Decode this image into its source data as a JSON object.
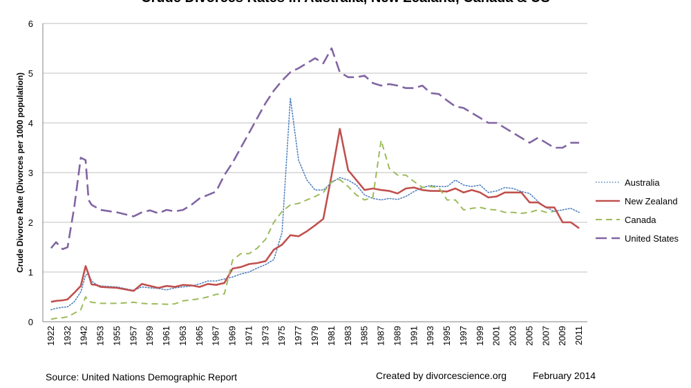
{
  "chart_data": {
    "type": "line",
    "title": "Crude Divorces Rates in Australia, New Zealand, Canada & US",
    "xlabel": "",
    "ylabel": "Crude Divorce Rate (Divorces per 1000 population)",
    "ylim": [
      0,
      6
    ],
    "yticks": [
      0,
      1,
      2,
      3,
      4,
      5,
      6
    ],
    "grid": "horizontal",
    "legend_position": "right",
    "xtick_labels": [
      "1922",
      "1932",
      "1942",
      "1953",
      "1955",
      "1957",
      "1959",
      "1961",
      "1963",
      "1965",
      "1967",
      "1969",
      "1971",
      "1973",
      "1975",
      "1977",
      "1979",
      "1981",
      "1983",
      "1985",
      "1987",
      "1989",
      "1991",
      "1993",
      "1995",
      "1997",
      "1999",
      "2001",
      "2003",
      "2005",
      "2007",
      "2009",
      "2011"
    ],
    "x": [
      1922,
      1932,
      1942,
      1953,
      1955,
      1957,
      1959,
      1961,
      1963,
      1965,
      1967,
      1969,
      1971,
      1973,
      1975,
      1977,
      1979,
      1981,
      1983,
      1985,
      1987,
      1989,
      1991,
      1993,
      1995,
      1997,
      1999,
      2001,
      2003,
      2005,
      2007,
      2009,
      2011
    ],
    "series": [
      {
        "name": "Australia",
        "color": "#4f81bd",
        "dash": "dotted",
        "points": [
          [
            1922,
            0.24
          ],
          [
            1925,
            0.27
          ],
          [
            1929,
            0.29
          ],
          [
            1932,
            0.3
          ],
          [
            1936,
            0.4
          ],
          [
            1940,
            0.6
          ],
          [
            1943,
            0.94
          ],
          [
            1945,
            0.96
          ],
          [
            1947,
            0.82
          ],
          [
            1950,
            0.75
          ],
          [
            1953,
            0.72
          ],
          [
            1955,
            0.7
          ],
          [
            1957,
            0.63
          ],
          [
            1958,
            0.7
          ],
          [
            1959,
            0.68
          ],
          [
            1960,
            0.67
          ],
          [
            1961,
            0.64
          ],
          [
            1962,
            0.68
          ],
          [
            1963,
            0.7
          ],
          [
            1964,
            0.72
          ],
          [
            1965,
            0.76
          ],
          [
            1966,
            0.82
          ],
          [
            1967,
            0.82
          ],
          [
            1968,
            0.86
          ],
          [
            1969,
            0.9
          ],
          [
            1970,
            0.96
          ],
          [
            1971,
            1.0
          ],
          [
            1972,
            1.08
          ],
          [
            1973,
            1.15
          ],
          [
            1974,
            1.25
          ],
          [
            1975,
            1.8
          ],
          [
            1976,
            4.5
          ],
          [
            1977,
            3.25
          ],
          [
            1978,
            2.85
          ],
          [
            1979,
            2.65
          ],
          [
            1980,
            2.65
          ],
          [
            1981,
            2.8
          ],
          [
            1982,
            2.9
          ],
          [
            1983,
            2.85
          ],
          [
            1984,
            2.75
          ],
          [
            1985,
            2.55
          ],
          [
            1986,
            2.48
          ],
          [
            1987,
            2.45
          ],
          [
            1988,
            2.48
          ],
          [
            1989,
            2.46
          ],
          [
            1990,
            2.52
          ],
          [
            1991,
            2.62
          ],
          [
            1992,
            2.7
          ],
          [
            1993,
            2.74
          ],
          [
            1994,
            2.72
          ],
          [
            1995,
            2.72
          ],
          [
            1996,
            2.85
          ],
          [
            1997,
            2.75
          ],
          [
            1998,
            2.72
          ],
          [
            1999,
            2.75
          ],
          [
            2000,
            2.6
          ],
          [
            2001,
            2.63
          ],
          [
            2002,
            2.7
          ],
          [
            2003,
            2.68
          ],
          [
            2004,
            2.62
          ],
          [
            2005,
            2.58
          ],
          [
            2006,
            2.42
          ],
          [
            2007,
            2.3
          ],
          [
            2008,
            2.22
          ],
          [
            2009,
            2.25
          ],
          [
            2010,
            2.28
          ],
          [
            2011,
            2.2
          ]
        ]
      },
      {
        "name": "New Zealand",
        "color": "#c0504d",
        "dash": "solid",
        "points": [
          [
            1922,
            0.4
          ],
          [
            1925,
            0.42
          ],
          [
            1929,
            0.43
          ],
          [
            1932,
            0.45
          ],
          [
            1936,
            0.58
          ],
          [
            1940,
            0.72
          ],
          [
            1943,
            1.12
          ],
          [
            1945,
            0.95
          ],
          [
            1947,
            0.75
          ],
          [
            1950,
            0.74
          ],
          [
            1953,
            0.7
          ],
          [
            1955,
            0.68
          ],
          [
            1957,
            0.62
          ],
          [
            1958,
            0.76
          ],
          [
            1959,
            0.72
          ],
          [
            1960,
            0.68
          ],
          [
            1961,
            0.72
          ],
          [
            1962,
            0.7
          ],
          [
            1963,
            0.74
          ],
          [
            1964,
            0.73
          ],
          [
            1965,
            0.7
          ],
          [
            1966,
            0.76
          ],
          [
            1967,
            0.74
          ],
          [
            1968,
            0.78
          ],
          [
            1969,
            1.07
          ],
          [
            1970,
            1.1
          ],
          [
            1971,
            1.16
          ],
          [
            1972,
            1.18
          ],
          [
            1973,
            1.22
          ],
          [
            1974,
            1.45
          ],
          [
            1975,
            1.55
          ],
          [
            1976,
            1.74
          ],
          [
            1977,
            1.72
          ],
          [
            1978,
            1.82
          ],
          [
            1979,
            1.94
          ],
          [
            1980,
            2.07
          ],
          [
            1981,
            2.95
          ],
          [
            1982,
            3.88
          ],
          [
            1983,
            3.05
          ],
          [
            1984,
            2.85
          ],
          [
            1985,
            2.65
          ],
          [
            1986,
            2.68
          ],
          [
            1987,
            2.65
          ],
          [
            1988,
            2.63
          ],
          [
            1989,
            2.58
          ],
          [
            1990,
            2.68
          ],
          [
            1991,
            2.7
          ],
          [
            1992,
            2.65
          ],
          [
            1993,
            2.63
          ],
          [
            1994,
            2.63
          ],
          [
            1995,
            2.62
          ],
          [
            1996,
            2.68
          ],
          [
            1997,
            2.6
          ],
          [
            1998,
            2.65
          ],
          [
            1999,
            2.6
          ],
          [
            2000,
            2.5
          ],
          [
            2001,
            2.52
          ],
          [
            2002,
            2.6
          ],
          [
            2003,
            2.6
          ],
          [
            2004,
            2.6
          ],
          [
            2005,
            2.4
          ],
          [
            2006,
            2.4
          ],
          [
            2007,
            2.3
          ],
          [
            2008,
            2.3
          ],
          [
            2009,
            2.0
          ],
          [
            2010,
            2.0
          ],
          [
            2011,
            1.88
          ]
        ]
      },
      {
        "name": "Canada",
        "color": "#9bbb59",
        "dash": "dashed",
        "points": [
          [
            1922,
            0.05
          ],
          [
            1925,
            0.07
          ],
          [
            1929,
            0.08
          ],
          [
            1932,
            0.1
          ],
          [
            1936,
            0.17
          ],
          [
            1940,
            0.24
          ],
          [
            1943,
            0.5
          ],
          [
            1945,
            0.42
          ],
          [
            1947,
            0.39
          ],
          [
            1950,
            0.38
          ],
          [
            1953,
            0.37
          ],
          [
            1955,
            0.37
          ],
          [
            1957,
            0.39
          ],
          [
            1958,
            0.37
          ],
          [
            1959,
            0.36
          ],
          [
            1960,
            0.36
          ],
          [
            1961,
            0.35
          ],
          [
            1962,
            0.36
          ],
          [
            1963,
            0.42
          ],
          [
            1964,
            0.44
          ],
          [
            1965,
            0.46
          ],
          [
            1966,
            0.5
          ],
          [
            1967,
            0.55
          ],
          [
            1968,
            0.56
          ],
          [
            1969,
            1.24
          ],
          [
            1970,
            1.37
          ],
          [
            1971,
            1.37
          ],
          [
            1972,
            1.48
          ],
          [
            1973,
            1.66
          ],
          [
            1974,
            2.0
          ],
          [
            1975,
            2.22
          ],
          [
            1976,
            2.35
          ],
          [
            1977,
            2.38
          ],
          [
            1978,
            2.45
          ],
          [
            1979,
            2.52
          ],
          [
            1980,
            2.6
          ],
          [
            1981,
            2.82
          ],
          [
            1982,
            2.86
          ],
          [
            1983,
            2.72
          ],
          [
            1984,
            2.55
          ],
          [
            1985,
            2.45
          ],
          [
            1986,
            2.5
          ],
          [
            1987,
            3.65
          ],
          [
            1988,
            3.08
          ],
          [
            1989,
            2.95
          ],
          [
            1990,
            2.95
          ],
          [
            1991,
            2.82
          ],
          [
            1992,
            2.7
          ],
          [
            1993,
            2.72
          ],
          [
            1994,
            2.7
          ],
          [
            1995,
            2.45
          ],
          [
            1996,
            2.45
          ],
          [
            1997,
            2.25
          ],
          [
            1998,
            2.28
          ],
          [
            1999,
            2.3
          ],
          [
            2000,
            2.26
          ],
          [
            2001,
            2.25
          ],
          [
            2002,
            2.2
          ],
          [
            2003,
            2.2
          ],
          [
            2004,
            2.18
          ],
          [
            2005,
            2.2
          ],
          [
            2006,
            2.25
          ],
          [
            2007,
            2.2
          ],
          [
            2008,
            2.22
          ]
        ]
      },
      {
        "name": "United States",
        "color": "#8064a2",
        "dash": "long-dash",
        "points": [
          [
            1922,
            1.48
          ],
          [
            1925,
            1.6
          ],
          [
            1929,
            1.46
          ],
          [
            1932,
            1.5
          ],
          [
            1936,
            2.3
          ],
          [
            1940,
            3.3
          ],
          [
            1943,
            3.25
          ],
          [
            1945,
            2.45
          ],
          [
            1947,
            2.35
          ],
          [
            1950,
            2.3
          ],
          [
            1953,
            2.25
          ],
          [
            1955,
            2.2
          ],
          [
            1957,
            2.12
          ],
          [
            1958,
            2.2
          ],
          [
            1959,
            2.24
          ],
          [
            1960,
            2.18
          ],
          [
            1961,
            2.25
          ],
          [
            1962,
            2.22
          ],
          [
            1963,
            2.25
          ],
          [
            1964,
            2.35
          ],
          [
            1965,
            2.48
          ],
          [
            1966,
            2.55
          ],
          [
            1967,
            2.62
          ],
          [
            1968,
            2.95
          ],
          [
            1969,
            3.2
          ],
          [
            1970,
            3.5
          ],
          [
            1971,
            3.8
          ],
          [
            1972,
            4.1
          ],
          [
            1973,
            4.4
          ],
          [
            1974,
            4.65
          ],
          [
            1975,
            4.85
          ],
          [
            1976,
            5.02
          ],
          [
            1977,
            5.1
          ],
          [
            1978,
            5.2
          ],
          [
            1979,
            5.3
          ],
          [
            1980,
            5.2
          ],
          [
            1981,
            5.5
          ],
          [
            1982,
            5.02
          ],
          [
            1983,
            4.92
          ],
          [
            1984,
            4.92
          ],
          [
            1985,
            4.95
          ],
          [
            1986,
            4.8
          ],
          [
            1987,
            4.75
          ],
          [
            1988,
            4.78
          ],
          [
            1989,
            4.75
          ],
          [
            1990,
            4.7
          ],
          [
            1991,
            4.7
          ],
          [
            1992,
            4.75
          ],
          [
            1993,
            4.6
          ],
          [
            1994,
            4.58
          ],
          [
            1995,
            4.45
          ],
          [
            1996,
            4.33
          ],
          [
            1997,
            4.3
          ],
          [
            1998,
            4.2
          ],
          [
            1999,
            4.1
          ],
          [
            2000,
            4.0
          ],
          [
            2001,
            4.0
          ],
          [
            2002,
            3.9
          ],
          [
            2003,
            3.8
          ],
          [
            2004,
            3.7
          ],
          [
            2005,
            3.6
          ],
          [
            2006,
            3.7
          ],
          [
            2007,
            3.6
          ],
          [
            2008,
            3.5
          ],
          [
            2009,
            3.5
          ],
          [
            2010,
            3.6
          ],
          [
            2011,
            3.6
          ]
        ]
      }
    ]
  },
  "footer": {
    "source": "Source: United Nations Demographic Report",
    "created": "Created by  divorcescience.org",
    "date": "February 2014"
  }
}
